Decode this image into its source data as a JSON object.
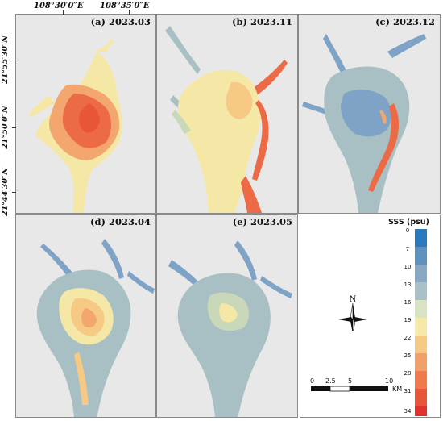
{
  "panels": [
    {
      "title": "(a) 2023.03"
    },
    {
      "title": "(b) 2023.11"
    },
    {
      "title": "(c) 2023.12"
    },
    {
      "title": "(d) 2023.04"
    },
    {
      "title": "(e) 2023.05"
    }
  ],
  "axes": {
    "longitudes": [
      "108°30′0″E",
      "108°35′0″E"
    ],
    "latitudes": [
      "21°55′30″N",
      "21°50′0″N",
      "21°44′30″N"
    ]
  },
  "legend": {
    "title": "SSS (psu)",
    "ticks": [
      "0",
      "7",
      "10",
      "13",
      "16",
      "19",
      "22",
      "25",
      "28",
      "31",
      "34"
    ],
    "colors": [
      "#2b79bd",
      "#5f93bf",
      "#88a9c4",
      "#a9c1c6",
      "#d7e3c1",
      "#f6e9a7",
      "#f6c985",
      "#f2a06b",
      "#ee7a4e",
      "#e95538",
      "#e3312e"
    ]
  },
  "compass": {
    "north_label": "N"
  },
  "scalebar": {
    "labels": [
      "0",
      "2.5",
      "5",
      "10"
    ],
    "unit": "KM"
  },
  "palette": {
    "background": "#e8e8e8",
    "blue": "#7ea3c6",
    "cyan": "#a8c0c4",
    "green": "#c9d8b8",
    "yellow": "#f5e7a5",
    "orange": "#f3a66d",
    "red": "#ec6a45"
  }
}
